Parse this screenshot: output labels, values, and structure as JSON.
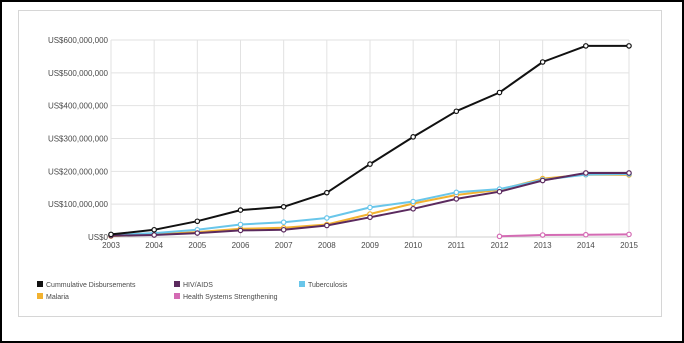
{
  "chart_data": {
    "type": "line",
    "title": "",
    "xlabel": "",
    "ylabel": "",
    "x": [
      "2003",
      "2004",
      "2005",
      "2006",
      "2007",
      "2008",
      "2009",
      "2010",
      "2011",
      "2012",
      "2013",
      "2014",
      "2015"
    ],
    "y_ticks": [
      "US$0",
      "US$100,000,000",
      "US$200,000,000",
      "US$300,000,000",
      "US$400,000,000",
      "US$500,000,000",
      "US$600,000,000"
    ],
    "ylim": [
      0,
      600000000
    ],
    "grid": true,
    "legend_position": "bottom-left",
    "series": [
      {
        "name": "Cummulative Disbursements",
        "color": "#111111",
        "values": [
          8000000,
          22000000,
          48000000,
          82000000,
          92000000,
          135000000,
          222000000,
          305000000,
          383000000,
          440000000,
          533000000,
          582000000,
          582000000
        ]
      },
      {
        "name": "HIV/AIDS",
        "color": "#5b2a5e",
        "values": [
          4000000,
          6000000,
          12000000,
          20000000,
          22000000,
          35000000,
          60000000,
          86000000,
          116000000,
          138000000,
          172000000,
          195000000,
          195000000
        ]
      },
      {
        "name": "Tuberculosis",
        "color": "#69c6ea",
        "values": [
          6000000,
          12000000,
          22000000,
          38000000,
          45000000,
          58000000,
          90000000,
          108000000,
          136000000,
          146000000,
          174000000,
          190000000,
          192000000
        ]
      },
      {
        "name": "Malaria",
        "color": "#f2b230",
        "values": [
          3000000,
          8000000,
          15000000,
          25000000,
          28000000,
          38000000,
          70000000,
          102000000,
          128000000,
          144000000,
          178000000,
          190000000,
          189000000
        ]
      },
      {
        "name": "Health Systems Strengthening",
        "color": "#d46bb4",
        "values": [
          null,
          null,
          null,
          null,
          null,
          null,
          null,
          null,
          null,
          2000000,
          6000000,
          7000000,
          8000000
        ]
      }
    ]
  }
}
